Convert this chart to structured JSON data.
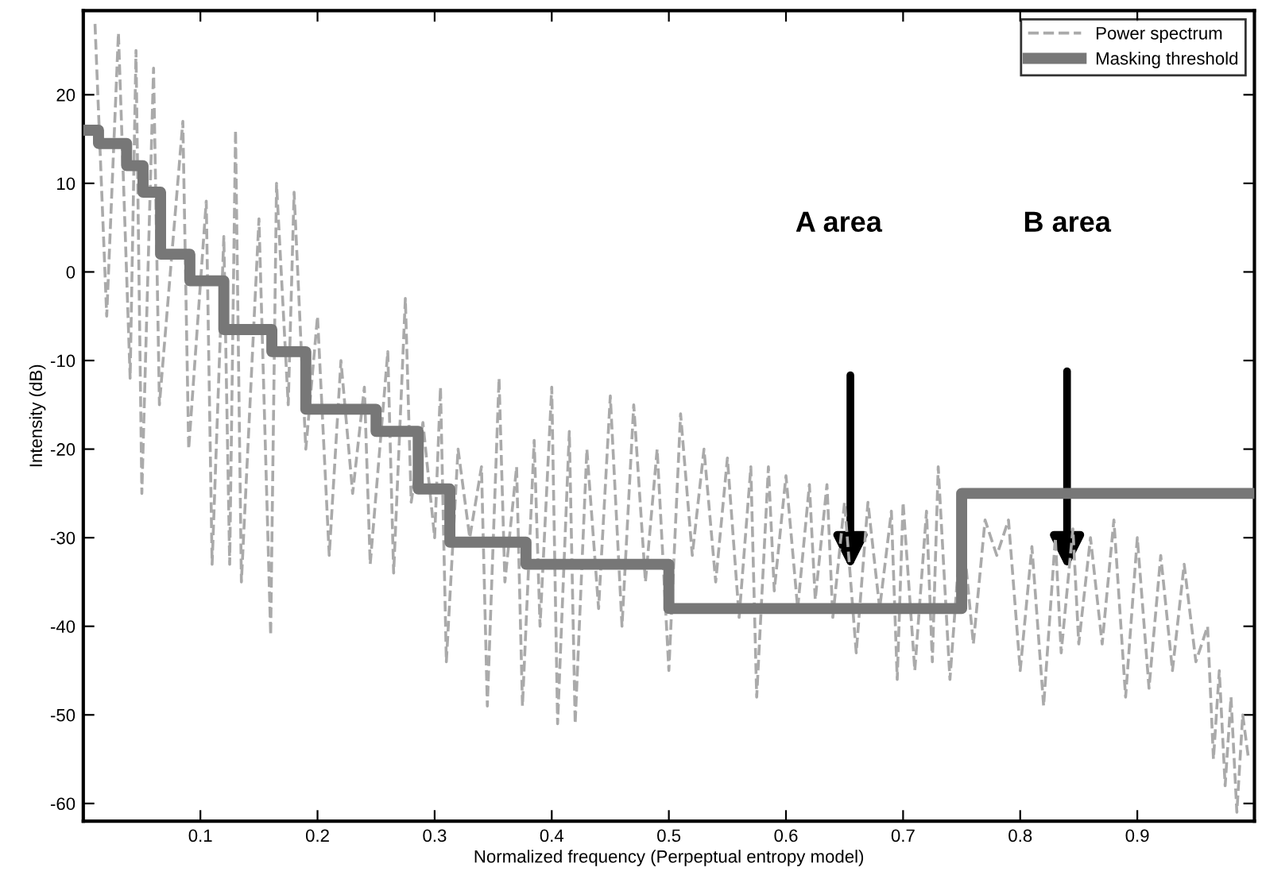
{
  "chart_data": {
    "type": "line",
    "xlabel": "Normalized frequency (Perpeptual entropy model)",
    "ylabel": "Intensity (dB)",
    "xlim": [
      0,
      1
    ],
    "xticks": [
      0.1,
      0.2,
      0.3,
      0.4,
      0.5,
      0.6,
      0.7,
      0.8,
      0.9
    ],
    "ylim": [
      -62,
      29.5
    ],
    "yticks": [
      -60,
      -50,
      -40,
      -30,
      -20,
      -10,
      0,
      10,
      20
    ],
    "grid": false,
    "legend": "top right",
    "series": [
      {
        "name": "Power spectrum",
        "line_style": "dashed",
        "color": "#aaaaaa",
        "x": [
          0.01,
          0.02,
          0.03,
          0.04,
          0.045,
          0.05,
          0.06,
          0.065,
          0.085,
          0.09,
          0.105,
          0.11,
          0.12,
          0.125,
          0.13,
          0.135,
          0.15,
          0.16,
          0.165,
          0.175,
          0.18,
          0.19,
          0.2,
          0.21,
          0.22,
          0.23,
          0.24,
          0.245,
          0.26,
          0.265,
          0.275,
          0.28,
          0.29,
          0.3,
          0.305,
          0.31,
          0.32,
          0.33,
          0.34,
          0.345,
          0.355,
          0.36,
          0.37,
          0.375,
          0.385,
          0.39,
          0.4,
          0.405,
          0.415,
          0.42,
          0.43,
          0.44,
          0.45,
          0.46,
          0.47,
          0.48,
          0.49,
          0.5,
          0.51,
          0.52,
          0.53,
          0.54,
          0.55,
          0.56,
          0.57,
          0.575,
          0.585,
          0.59,
          0.6,
          0.61,
          0.62,
          0.625,
          0.635,
          0.64,
          0.65,
          0.66,
          0.67,
          0.68,
          0.69,
          0.695,
          0.7,
          0.71,
          0.72,
          0.725,
          0.73,
          0.74,
          0.75,
          0.76,
          0.77,
          0.78,
          0.79,
          0.8,
          0.81,
          0.82,
          0.83,
          0.835,
          0.845,
          0.85,
          0.86,
          0.87,
          0.88,
          0.89,
          0.9,
          0.91,
          0.92,
          0.93,
          0.94,
          0.95,
          0.96,
          0.965,
          0.97,
          0.975,
          0.98,
          0.985,
          0.99,
          0.995
        ],
        "values": [
          28,
          -5,
          27,
          -12,
          25,
          -25,
          23,
          -15,
          17,
          -20,
          8,
          -33,
          4,
          -33,
          16,
          -35,
          6,
          -41,
          10,
          -15,
          9,
          -20,
          -5,
          -32,
          -10,
          -25,
          -13,
          -33,
          -9,
          -34,
          -3,
          -26,
          -17,
          -30,
          -13,
          -44,
          -20,
          -30,
          -22,
          -49,
          -12,
          -35,
          -22,
          -49,
          -19,
          -40,
          -13,
          -51,
          -18,
          -51,
          -20,
          -38,
          -14,
          -40,
          -15,
          -35,
          -20,
          -45,
          -16,
          -32,
          -20,
          -35,
          -21,
          -39,
          -22,
          -48,
          -22,
          -36,
          -23,
          -38,
          -24,
          -37,
          -24,
          -39,
          -26,
          -43,
          -26,
          -38,
          -27,
          -46,
          -26,
          -45,
          -27,
          -44,
          -22,
          -46,
          -28,
          -42,
          -28,
          -32,
          -28,
          -45,
          -31,
          -49,
          -30,
          -43,
          -29,
          -42,
          -30,
          -42,
          -28,
          -48,
          -30,
          -47,
          -32,
          -45,
          -33,
          -44,
          -40,
          -55,
          -45,
          -58,
          -48,
          -61,
          -50,
          -55
        ]
      },
      {
        "name": "Masking threshold",
        "type": "step",
        "line_style": "solid",
        "color": "#777777",
        "x": [
          0,
          0.013,
          0.037,
          0.051,
          0.066,
          0.091,
          0.12,
          0.161,
          0.19,
          0.25,
          0.286,
          0.313,
          0.378,
          0.5,
          0.75,
          1.0
        ],
        "values": [
          16,
          14.5,
          12,
          9,
          2,
          -1,
          -6.5,
          -9,
          -15.5,
          -18,
          -24.5,
          -30.5,
          -33,
          -38,
          -25,
          -25
        ]
      }
    ],
    "annotations": [
      "A area",
      "B area"
    ]
  }
}
